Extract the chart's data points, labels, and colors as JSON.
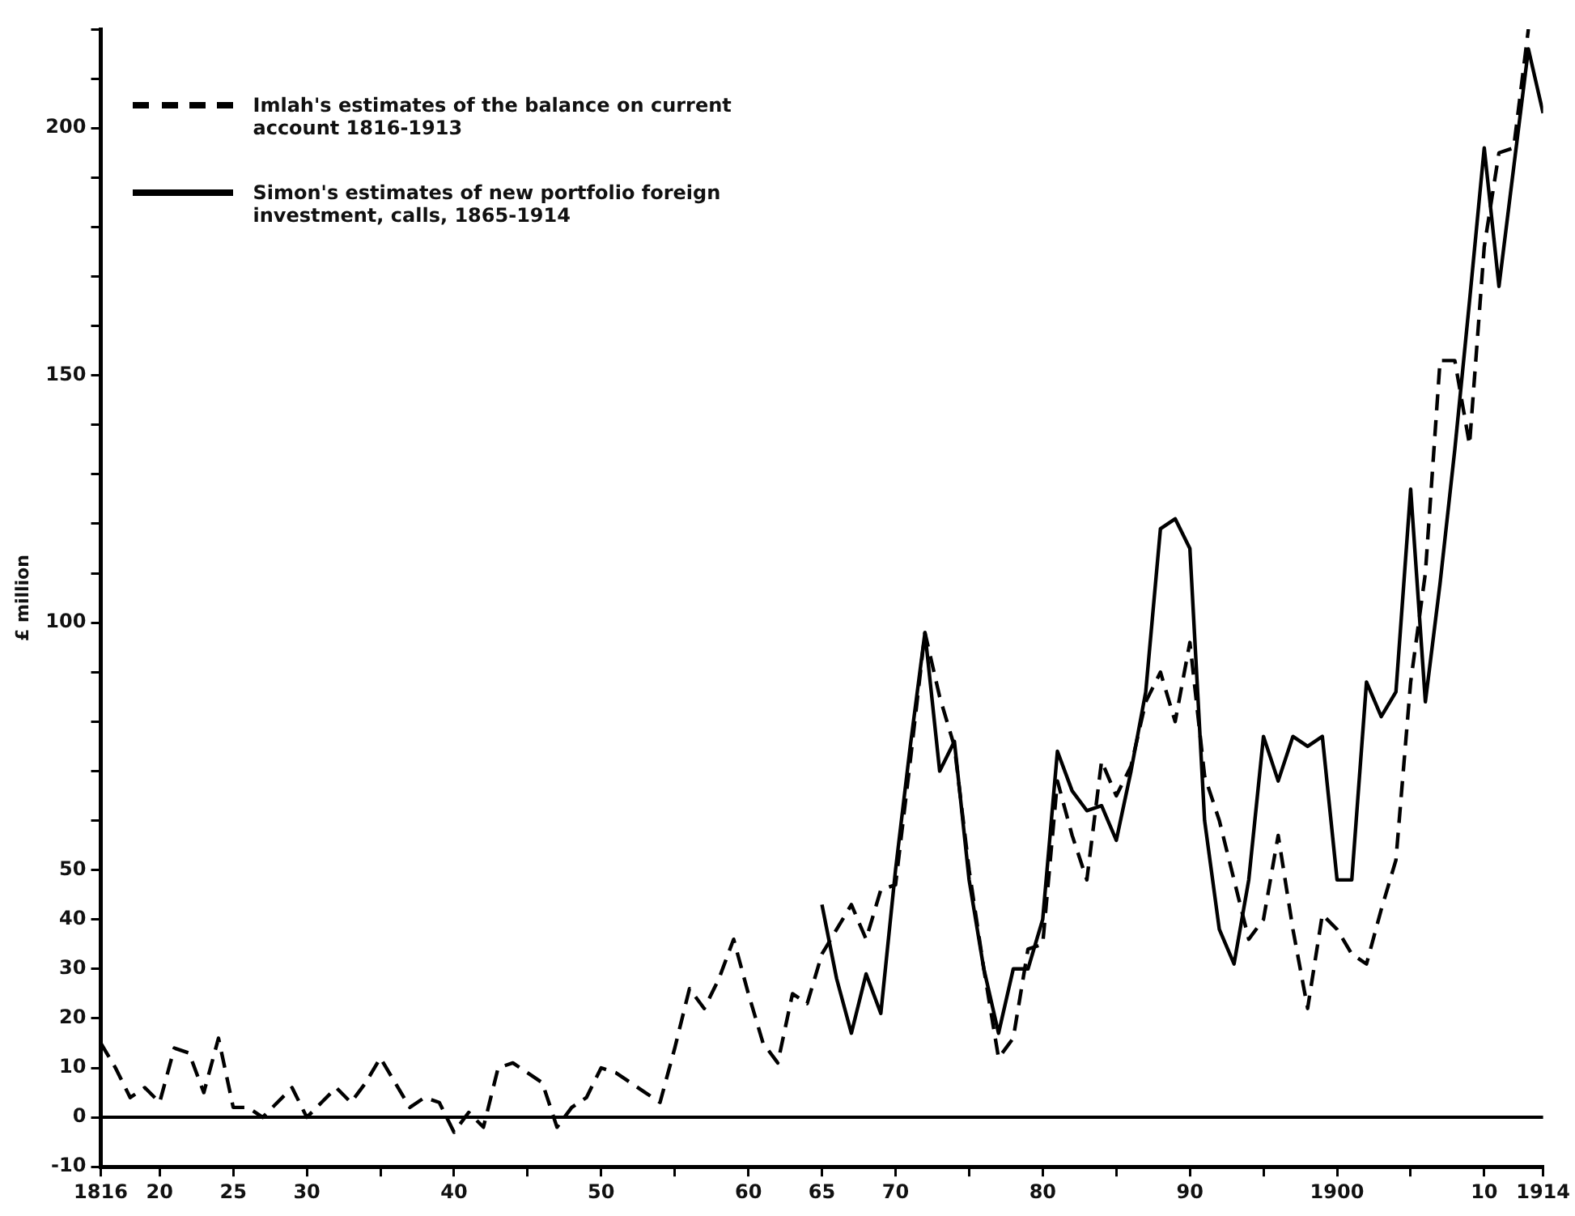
{
  "chart_data": {
    "type": "line",
    "ylabel": "£ million",
    "legend": "top left",
    "marker": "none",
    "grid": false,
    "xlim": [
      1816,
      1914
    ],
    "xticks": [
      1816,
      {
        "value": 1820,
        "label": "20"
      },
      {
        "value": 1825,
        "label": "25"
      },
      {
        "value": 1830,
        "label": "30"
      },
      {
        "value": 1835,
        "label": null
      },
      {
        "value": 1840,
        "label": "40"
      },
      {
        "value": 1845,
        "label": null
      },
      {
        "value": 1850,
        "label": "50"
      },
      {
        "value": 1855,
        "label": null
      },
      {
        "value": 1860,
        "label": "60"
      },
      {
        "value": 1865,
        "label": "65"
      },
      {
        "value": 1870,
        "label": "70"
      },
      {
        "value": 1875,
        "label": null
      },
      {
        "value": 1880,
        "label": "80"
      },
      {
        "value": 1885,
        "label": null
      },
      {
        "value": 1890,
        "label": "90"
      },
      {
        "value": 1895,
        "label": null
      },
      1900,
      {
        "value": 1905,
        "label": null
      },
      {
        "value": 1910,
        "label": "10"
      },
      1914
    ],
    "ylim": [
      -10,
      220
    ],
    "yticks": [
      -10,
      0,
      10,
      20,
      30,
      40,
      50,
      {
        "value": 60,
        "label": null
      },
      {
        "value": 70,
        "label": null
      },
      {
        "value": 80,
        "label": null
      },
      {
        "value": 90,
        "label": null
      },
      100,
      {
        "value": 110,
        "label": null
      },
      {
        "value": 120,
        "label": null
      },
      {
        "value": 130,
        "label": null
      },
      {
        "value": 140,
        "label": null
      },
      150,
      {
        "value": 160,
        "label": null
      },
      {
        "value": 170,
        "label": null
      },
      {
        "value": 180,
        "label": null
      },
      {
        "value": 190,
        "label": null
      },
      200,
      {
        "value": 210,
        "label": null
      },
      {
        "value": 220,
        "label": null
      }
    ],
    "ref_lines": [
      {
        "axis": "y",
        "value": 0,
        "color": "#000000"
      }
    ],
    "series": [
      {
        "name": "Imlah's estimates of the balance on current account 1816-1913",
        "color": "#000000",
        "line_style": "dashed",
        "x": [
          1816,
          1817,
          1818,
          1819,
          1820,
          1821,
          1822,
          1823,
          1824,
          1825,
          1826,
          1827,
          1828,
          1829,
          1830,
          1831,
          1832,
          1833,
          1834,
          1835,
          1836,
          1837,
          1838,
          1839,
          1840,
          1841,
          1842,
          1843,
          1844,
          1845,
          1846,
          1847,
          1848,
          1849,
          1850,
          1851,
          1852,
          1853,
          1854,
          1855,
          1856,
          1857,
          1858,
          1859,
          1860,
          1861,
          1862,
          1863,
          1864,
          1865,
          1866,
          1867,
          1868,
          1869,
          1870,
          1871,
          1872,
          1873,
          1874,
          1875,
          1876,
          1877,
          1878,
          1879,
          1880,
          1881,
          1882,
          1883,
          1884,
          1885,
          1886,
          1887,
          1888,
          1889,
          1890,
          1891,
          1892,
          1893,
          1894,
          1895,
          1896,
          1897,
          1898,
          1899,
          1900,
          1901,
          1902,
          1903,
          1904,
          1905,
          1906,
          1907,
          1908,
          1909,
          1910,
          1911,
          1912,
          1913
        ],
        "values": [
          15,
          10,
          4,
          6,
          3,
          14,
          13,
          5,
          16,
          2,
          2,
          0,
          3,
          6,
          0,
          3,
          6,
          3,
          7,
          12,
          7,
          2,
          4,
          3,
          -3,
          1,
          -2,
          10,
          11,
          9,
          7,
          -2,
          2,
          4,
          10,
          9,
          7,
          5,
          3,
          14,
          26,
          22,
          28,
          36,
          25,
          15,
          11,
          25,
          23,
          33,
          38,
          43,
          36,
          46,
          47,
          72,
          98,
          85,
          75,
          50,
          30,
          12,
          16,
          34,
          35,
          68,
          57,
          48,
          72,
          65,
          71,
          84,
          90,
          80,
          96,
          69,
          60,
          48,
          36,
          40,
          57,
          38,
          22,
          41,
          38,
          33,
          31,
          42,
          52,
          88,
          110,
          153,
          153,
          136,
          176,
          195,
          196,
          220
        ]
      },
      {
        "name": "Simon's estimates of new portfolio foreign investment, calls, 1865-1914",
        "color": "#000000",
        "line_style": "solid",
        "x": [
          1865,
          1866,
          1867,
          1868,
          1869,
          1870,
          1871,
          1872,
          1873,
          1874,
          1875,
          1876,
          1877,
          1878,
          1879,
          1880,
          1881,
          1882,
          1883,
          1884,
          1885,
          1886,
          1887,
          1888,
          1889,
          1890,
          1891,
          1892,
          1893,
          1894,
          1895,
          1896,
          1897,
          1898,
          1899,
          1900,
          1901,
          1902,
          1903,
          1904,
          1905,
          1906,
          1907,
          1908,
          1909,
          1910,
          1911,
          1912,
          1913,
          1914
        ],
        "values": [
          43,
          28,
          17,
          29,
          21,
          50,
          75,
          98,
          70,
          76,
          48,
          30,
          17,
          30,
          30,
          40,
          74,
          66,
          62,
          63,
          56,
          70,
          86,
          119,
          121,
          115,
          60,
          38,
          31,
          48,
          77,
          68,
          77,
          75,
          77,
          48,
          48,
          88,
          81,
          86,
          127,
          84,
          108,
          135,
          165,
          196,
          168,
          192,
          216,
          203
        ]
      }
    ]
  }
}
